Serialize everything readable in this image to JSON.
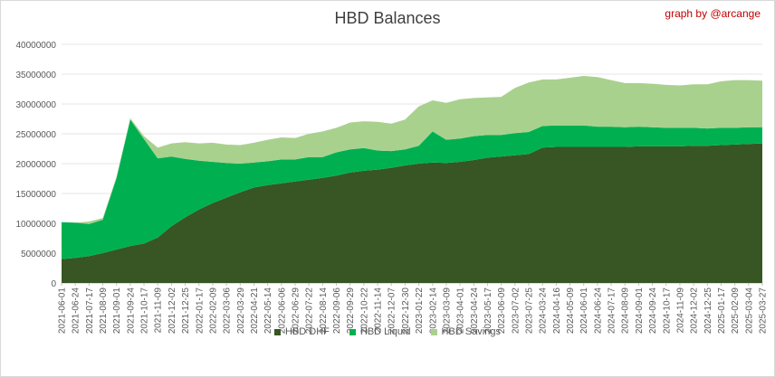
{
  "chart_data": {
    "type": "area",
    "stacked": true,
    "title": "HBD Balances",
    "annotation": "graph by @arcange",
    "ylim": [
      0,
      40000000
    ],
    "yticks": [
      0,
      5000000,
      10000000,
      15000000,
      20000000,
      25000000,
      30000000,
      35000000,
      40000000
    ],
    "ytick_labels": [
      "0",
      "5000000",
      "10000000",
      "15000000",
      "20000000",
      "25000000",
      "30000000",
      "35000000",
      "40000000"
    ],
    "grid": true,
    "legend_position": "bottom",
    "xtick_labels": [
      "2021-06-01",
      "2021-06-24",
      "2021-07-17",
      "2021-08-09",
      "2021-09-01",
      "2021-09-24",
      "2021-10-17",
      "2021-11-09",
      "2021-12-02",
      "2021-12-25",
      "2022-01-17",
      "2022-02-09",
      "2022-03-06",
      "2022-03-29",
      "2022-04-21",
      "2022-05-14",
      "2022-06-06",
      "2022-06-29",
      "2022-07-22",
      "2022-08-14",
      "2022-09-06",
      "2022-09-29",
      "2022-10-22",
      "2022-11-14",
      "2022-12-07",
      "2022-12-30",
      "2023-01-22",
      "2023-02-14",
      "2023-03-09",
      "2023-04-01",
      "2023-04-24",
      "2023-05-17",
      "2023-06-09",
      "2023-07-02",
      "2023-07-25",
      "2024-03-24",
      "2024-04-16",
      "2024-05-09",
      "2024-06-01",
      "2024-06-24",
      "2024-07-17",
      "2024-08-09",
      "2024-09-01",
      "2024-09-24",
      "2024-10-17",
      "2024-11-09",
      "2024-12-02",
      "2024-12-25",
      "2025-01-17",
      "2025-02-09",
      "2025-03-04",
      "2025-03-27"
    ],
    "x": [
      "2021-06-01",
      "2021-06-24",
      "2021-07-17",
      "2021-08-09",
      "2021-09-01",
      "2021-09-24",
      "2021-10-17",
      "2021-11-09",
      "2021-12-02",
      "2021-12-25",
      "2022-01-17",
      "2022-02-09",
      "2022-03-06",
      "2022-03-29",
      "2022-04-21",
      "2022-05-14",
      "2022-06-06",
      "2022-06-29",
      "2022-07-22",
      "2022-08-14",
      "2022-09-06",
      "2022-09-29",
      "2022-10-22",
      "2022-11-14",
      "2022-12-07",
      "2022-12-30",
      "2023-01-22",
      "2023-02-14",
      "2023-03-09",
      "2023-04-01",
      "2023-04-24",
      "2023-05-17",
      "2023-06-09",
      "2023-07-02",
      "2023-07-25",
      "2024-03-24",
      "2024-04-16",
      "2024-05-09",
      "2024-06-01",
      "2024-06-24",
      "2024-07-17",
      "2024-08-09",
      "2024-09-01",
      "2024-09-24",
      "2024-10-17",
      "2024-11-09",
      "2024-12-02",
      "2024-12-25",
      "2025-01-17",
      "2025-02-09",
      "2025-03-04",
      "2025-03-27"
    ],
    "series": [
      {
        "name": "HBD DHF",
        "color": "#375623",
        "values": [
          4000000,
          4200000,
          4500000,
          5000000,
          5600000,
          6200000,
          6600000,
          7600000,
          9500000,
          11000000,
          12300000,
          13400000,
          14300000,
          15200000,
          16000000,
          16400000,
          16700000,
          17000000,
          17300000,
          17600000,
          18000000,
          18500000,
          18800000,
          19000000,
          19300000,
          19700000,
          20000000,
          20200000,
          20100000,
          20300000,
          20600000,
          21000000,
          21200000,
          21400000,
          21600000,
          22700000,
          22800000,
          22800000,
          22800000,
          22800000,
          22800000,
          22800000,
          22900000,
          22900000,
          22900000,
          22900000,
          23000000,
          23000000,
          23100000,
          23200000,
          23300000,
          23400000
        ]
      },
      {
        "name": "HBD Liquid",
        "color": "#00b050",
        "values": [
          6200000,
          5900000,
          5400000,
          5600000,
          12000000,
          21200000,
          17500000,
          13300000,
          11700000,
          9800000,
          8200000,
          6900000,
          5800000,
          4800000,
          4200000,
          4000000,
          4000000,
          3700000,
          3800000,
          3500000,
          3900000,
          3900000,
          3800000,
          3200000,
          2800000,
          2700000,
          3000000,
          5200000,
          3900000,
          3900000,
          4000000,
          3800000,
          3600000,
          3700000,
          3700000,
          3600000,
          3600000,
          3600000,
          3600000,
          3400000,
          3400000,
          3300000,
          3300000,
          3200000,
          3100000,
          3100000,
          3000000,
          2900000,
          2900000,
          2800000,
          2800000,
          2700000
        ]
      },
      {
        "name": "HBD Savings",
        "color": "#a9d18e",
        "values": [
          0,
          0,
          400000,
          300000,
          200000,
          200000,
          500000,
          1800000,
          2200000,
          2800000,
          2900000,
          3200000,
          3100000,
          3100000,
          3300000,
          3600000,
          3700000,
          3600000,
          3900000,
          4300000,
          4100000,
          4500000,
          4500000,
          4800000,
          4600000,
          5000000,
          6600000,
          5200000,
          6200000,
          6600000,
          6400000,
          6300000,
          6400000,
          7600000,
          8300000,
          7800000,
          7700000,
          8000000,
          8300000,
          8300000,
          7800000,
          7400000,
          7300000,
          7300000,
          7200000,
          7100000,
          7300000,
          7400000,
          7800000,
          8000000,
          7900000,
          7800000
        ]
      }
    ]
  }
}
